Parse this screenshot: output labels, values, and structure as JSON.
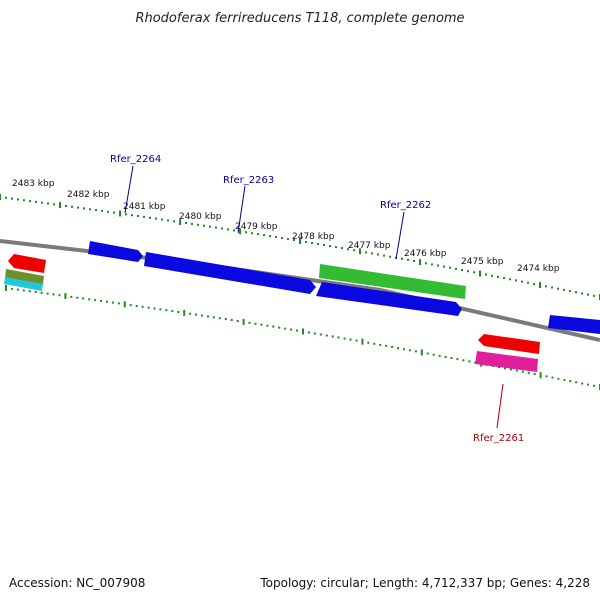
{
  "title": "Rhodoferax ferrireducens T118, complete genome",
  "footer": {
    "accession": "Accession: NC_007908",
    "summary": "Topology: circular; Length: 4,712,337 bp; Genes: 4,228"
  },
  "colors": {
    "backbone": "#7a7a7a",
    "tick": "#1f8a1f",
    "blue_gene": "#0a0ae0",
    "green_gene": "#33bb33",
    "red_gene": "#ee0000",
    "pink_gene": "#e0209a",
    "olive_gene": "#6f8f2a",
    "cyan_gene": "#22c8d8",
    "label_blue": "#000099",
    "label_red": "#aa0000"
  },
  "kbp_labels": [
    "2483 kbp",
    "2482 kbp",
    "2481 kbp",
    "2480 kbp",
    "2479 kbp",
    "2478 kbp",
    "2477 kbp",
    "2476 kbp",
    "2475 kbp",
    "2474 kbp"
  ],
  "gene_labels": [
    {
      "text": "Rfer_2264",
      "color": "label_blue"
    },
    {
      "text": "Rfer_2263",
      "color": "label_blue"
    },
    {
      "text": "Rfer_2262",
      "color": "label_blue"
    },
    {
      "text": "Rfer_2261",
      "color": "label_red"
    }
  ]
}
